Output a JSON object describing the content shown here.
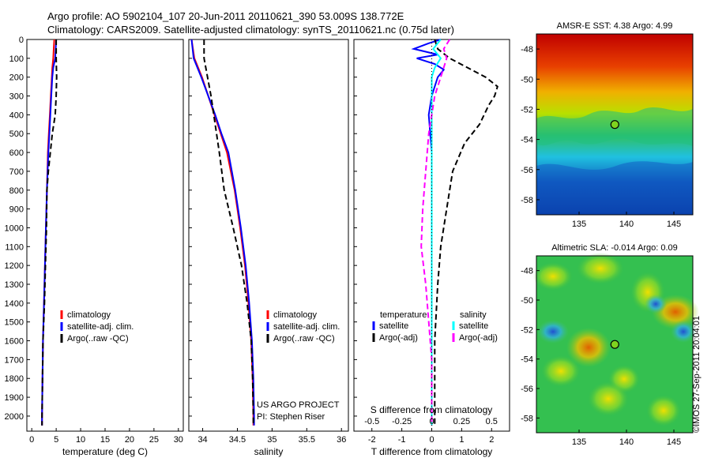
{
  "header": {
    "line1": "Argo profile: AO 5902104_107 20-Jun-2011 20110621_390 53.009S 138.772E",
    "line2": "Climatology: CARS2009. Satellite-adjusted climatology: synTS_20110621.nc (0.75d later)"
  },
  "credit": {
    "watermark": "©IMOS 27-Sep-2011 20:04:01",
    "project": "US ARGO PROJECT",
    "pi": "PI: Stephen Riser"
  },
  "colors": {
    "climatology": "#ff0000",
    "satellite": "#0000ff",
    "argo": "#000000",
    "satellite_cyan": "#00ffff",
    "argo_magenta": "#ff00ff"
  },
  "chart_data": [
    {
      "id": "temperature",
      "type": "line",
      "xlabel": "temperature (deg C)",
      "xlim": [
        -1,
        31
      ],
      "xticks": [
        0,
        5,
        10,
        15,
        20,
        25,
        30
      ],
      "ylim": [
        2080,
        0
      ],
      "yticks": [
        0,
        100,
        200,
        300,
        400,
        500,
        600,
        700,
        800,
        900,
        1000,
        1100,
        1200,
        1300,
        1400,
        1500,
        1600,
        1700,
        1800,
        1900,
        2000
      ],
      "legend": [
        "climatology",
        "satellite-adj. clim.",
        "Argo(..raw -QC)"
      ],
      "series": [
        {
          "name": "climatology",
          "color": "#ff0000",
          "dash": "",
          "points": [
            [
              4.6,
              0
            ],
            [
              4.5,
              50
            ],
            [
              4.4,
              100
            ],
            [
              4.2,
              150
            ],
            [
              4.1,
              200
            ],
            [
              3.9,
              300
            ],
            [
              3.7,
              400
            ],
            [
              3.5,
              500
            ],
            [
              3.3,
              600
            ],
            [
              3.1,
              800
            ],
            [
              2.9,
              1000
            ],
            [
              2.7,
              1200
            ],
            [
              2.5,
              1400
            ],
            [
              2.3,
              1600
            ],
            [
              2.2,
              1800
            ],
            [
              2.1,
              2000
            ],
            [
              2.1,
              2050
            ]
          ]
        },
        {
          "name": "satellite-adj. clim.",
          "color": "#0000ff",
          "dash": "",
          "points": [
            [
              5.0,
              0
            ],
            [
              4.9,
              50
            ],
            [
              4.8,
              100
            ],
            [
              4.4,
              150
            ],
            [
              4.2,
              200
            ],
            [
              4.0,
              300
            ],
            [
              3.8,
              400
            ],
            [
              3.6,
              500
            ],
            [
              3.4,
              600
            ],
            [
              3.1,
              800
            ],
            [
              2.9,
              1000
            ],
            [
              2.7,
              1200
            ],
            [
              2.5,
              1400
            ],
            [
              2.3,
              1600
            ],
            [
              2.2,
              1800
            ],
            [
              2.1,
              2000
            ],
            [
              2.1,
              2050
            ]
          ]
        },
        {
          "name": "Argo(..raw -QC)",
          "color": "#000000",
          "dash": "7,4",
          "points": [
            [
              5.0,
              0
            ],
            [
              5.0,
              100
            ],
            [
              5.1,
              200
            ],
            [
              5.0,
              300
            ],
            [
              4.8,
              400
            ],
            [
              4.2,
              500
            ],
            [
              3.8,
              600
            ],
            [
              3.4,
              700
            ],
            [
              3.1,
              800
            ],
            [
              3.0,
              1000
            ],
            [
              2.8,
              1200
            ],
            [
              2.6,
              1400
            ],
            [
              2.3,
              1600
            ],
            [
              2.2,
              1800
            ],
            [
              2.1,
              2000
            ],
            [
              2.1,
              2050
            ]
          ]
        }
      ]
    },
    {
      "id": "salinity",
      "type": "line",
      "xlabel": "salinity",
      "xlim": [
        33.8,
        36.1
      ],
      "xticks": [
        34,
        34.5,
        35,
        35.5,
        36
      ],
      "ylim": [
        2080,
        0
      ],
      "legend": [
        "climatology",
        "satellite-adj. clim.",
        "Argo(..raw -QC)"
      ],
      "series": [
        {
          "name": "climatology",
          "color": "#ff0000",
          "dash": "",
          "points": [
            [
              33.84,
              0
            ],
            [
              33.88,
              100
            ],
            [
              33.99,
              200
            ],
            [
              34.08,
              300
            ],
            [
              34.17,
              400
            ],
            [
              34.26,
              500
            ],
            [
              34.35,
              600
            ],
            [
              34.46,
              800
            ],
            [
              34.54,
              1000
            ],
            [
              34.61,
              1200
            ],
            [
              34.66,
              1400
            ],
            [
              34.7,
              1600
            ],
            [
              34.72,
              1800
            ],
            [
              34.73,
              2000
            ],
            [
              34.73,
              2050
            ]
          ]
        },
        {
          "name": "satellite-adj. clim.",
          "color": "#0000ff",
          "dash": "",
          "points": [
            [
              33.84,
              0
            ],
            [
              33.87,
              100
            ],
            [
              33.98,
              200
            ],
            [
              34.08,
              300
            ],
            [
              34.18,
              400
            ],
            [
              34.27,
              500
            ],
            [
              34.37,
              600
            ],
            [
              34.47,
              800
            ],
            [
              34.55,
              1000
            ],
            [
              34.62,
              1200
            ],
            [
              34.67,
              1400
            ],
            [
              34.71,
              1600
            ],
            [
              34.73,
              1800
            ],
            [
              34.74,
              2000
            ],
            [
              34.74,
              2050
            ]
          ]
        },
        {
          "name": "Argo(..raw -QC)",
          "color": "#000000",
          "dash": "7,4",
          "points": [
            [
              34.02,
              0
            ],
            [
              34.02,
              100
            ],
            [
              34.07,
              200
            ],
            [
              34.12,
              300
            ],
            [
              34.16,
              400
            ],
            [
              34.2,
              500
            ],
            [
              34.24,
              600
            ],
            [
              34.31,
              800
            ],
            [
              34.44,
              1000
            ],
            [
              34.56,
              1200
            ],
            [
              34.64,
              1400
            ],
            [
              34.7,
              1600
            ],
            [
              34.72,
              1800
            ],
            [
              34.73,
              2000
            ],
            [
              34.73,
              2050
            ]
          ]
        }
      ]
    },
    {
      "id": "difference",
      "type": "line",
      "xlabel": "T difference from climatology",
      "xlabel_top": "S difference from climatology",
      "xlim": [
        -2.6,
        2.6
      ],
      "xticks": [
        -2,
        -1,
        0,
        1,
        2
      ],
      "xticks_top": [
        -0.5,
        -0.25,
        0,
        0.25,
        0.5
      ],
      "ylim": [
        2080,
        0
      ],
      "legend_headers": [
        "temperature",
        "salinity"
      ],
      "legend": [
        "satellite",
        "Argo(-adj)",
        "satellite",
        "Argo(-adj)"
      ],
      "series": [
        {
          "name": "satellite",
          "color": "#0000ff",
          "dash": "",
          "points": [
            [
              0.3,
              0
            ],
            [
              -0.1,
              20
            ],
            [
              -0.6,
              50
            ],
            [
              0.2,
              80
            ],
            [
              -0.5,
              100
            ],
            [
              0.1,
              130
            ],
            [
              0.4,
              160
            ],
            [
              0.2,
              200
            ],
            [
              0.0,
              300
            ],
            [
              -0.1,
              400
            ],
            [
              0.0,
              600
            ],
            [
              0.0,
              1000
            ],
            [
              0.0,
              2050
            ]
          ]
        },
        {
          "name": "Argo(-adj)",
          "color": "#000000",
          "dash": "7,4",
          "points": [
            [
              0.1,
              0
            ],
            [
              0.2,
              50
            ],
            [
              0.6,
              100
            ],
            [
              1.2,
              150
            ],
            [
              1.8,
              200
            ],
            [
              2.2,
              250
            ],
            [
              2.1,
              300
            ],
            [
              1.9,
              350
            ],
            [
              1.6,
              450
            ],
            [
              1.1,
              550
            ],
            [
              0.7,
              700
            ],
            [
              0.5,
              900
            ],
            [
              0.3,
              1100
            ],
            [
              0.2,
              1300
            ],
            [
              0.1,
              1600
            ],
            [
              0.1,
              2050
            ]
          ]
        },
        {
          "name": "satellite",
          "color": "#00ffff",
          "dash": "",
          "points": [
            [
              0.3,
              0
            ],
            [
              0.05,
              50
            ],
            [
              0.3,
              100
            ],
            [
              0.1,
              150
            ],
            [
              0.0,
              200
            ],
            [
              0.0,
              400
            ],
            [
              0.0,
              1000
            ],
            [
              0.0,
              2050
            ]
          ]
        },
        {
          "name": "Argo(-adj)",
          "color": "#ff00ff",
          "dash": "7,4",
          "points": [
            [
              0.6,
              0
            ],
            [
              0.4,
              50
            ],
            [
              0.5,
              100
            ],
            [
              0.3,
              200
            ],
            [
              0.1,
              300
            ],
            [
              -0.1,
              500
            ],
            [
              -0.2,
              700
            ],
            [
              -0.3,
              900
            ],
            [
              -0.35,
              1100
            ],
            [
              -0.2,
              1300
            ],
            [
              -0.1,
              1500
            ],
            [
              0.0,
              1700
            ],
            [
              0.0,
              2050
            ]
          ]
        }
      ]
    },
    {
      "id": "sst_map",
      "type": "heatmap",
      "title": "AMSR-E SST: 4.38 Argo: 4.99",
      "xlim": [
        130.5,
        147
      ],
      "ylim": [
        -59,
        -47
      ],
      "xticks": [
        135,
        140,
        145
      ],
      "yticks": [
        -48,
        -50,
        -52,
        -54,
        -56,
        -58
      ],
      "marker": [
        138.772,
        -53.009
      ]
    },
    {
      "id": "sla_map",
      "type": "heatmap",
      "title": "Altimetric SLA: -0.014 Argo: 0.09",
      "xlim": [
        130.5,
        147
      ],
      "ylim": [
        -59,
        -47
      ],
      "xticks": [
        135,
        140,
        145
      ],
      "yticks": [
        -48,
        -50,
        -52,
        -54,
        -56,
        -58
      ],
      "marker": [
        138.772,
        -53.009
      ]
    }
  ]
}
